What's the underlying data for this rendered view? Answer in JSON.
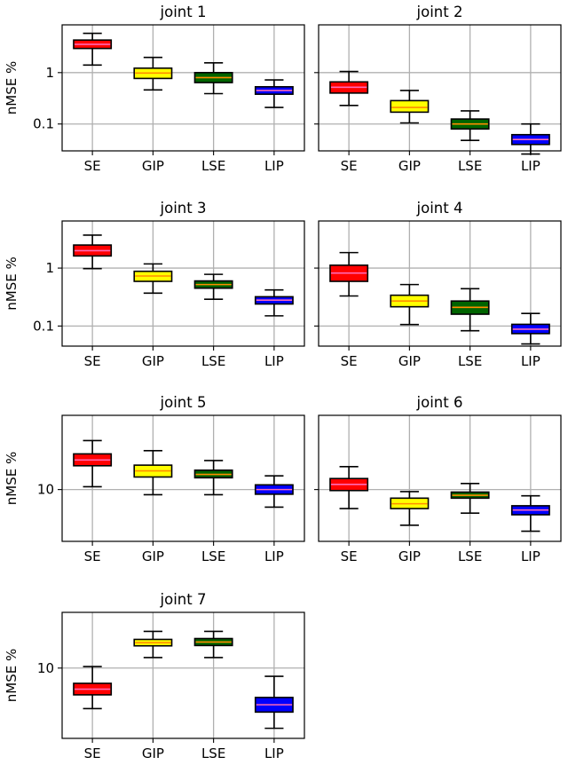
{
  "chart_data": [
    {
      "type": "box",
      "title": "joint 1",
      "ylabel": "nMSE %",
      "yscale": "log",
      "ylim": [
        0.03,
        8.5
      ],
      "yticks": [
        0.1,
        1
      ],
      "yticklabels": [
        "0.1",
        "1"
      ],
      "categories": [
        "SE",
        "GIP",
        "LSE",
        "LIP"
      ],
      "boxes": [
        {
          "whislo": 1.4,
          "q1": 2.95,
          "med": 3.55,
          "q3": 4.3,
          "whishi": 5.8
        },
        {
          "whislo": 0.46,
          "q1": 0.77,
          "med": 0.98,
          "q3": 1.22,
          "whishi": 1.98
        },
        {
          "whislo": 0.39,
          "q1": 0.64,
          "med": 0.8,
          "q3": 1.0,
          "whishi": 1.55
        },
        {
          "whislo": 0.21,
          "q1": 0.38,
          "med": 0.45,
          "q3": 0.53,
          "whishi": 0.72
        }
      ],
      "grid": true
    },
    {
      "type": "box",
      "title": "joint 2",
      "ylabel": "",
      "yscale": "log",
      "ylim": [
        0.03,
        8.5
      ],
      "yticks": [
        0.1,
        1
      ],
      "yticklabels": [
        "",
        ""
      ],
      "categories": [
        "SE",
        "GIP",
        "LSE",
        "LIP"
      ],
      "boxes": [
        {
          "whislo": 0.23,
          "q1": 0.4,
          "med": 0.52,
          "q3": 0.66,
          "whishi": 1.05
        },
        {
          "whislo": 0.105,
          "q1": 0.17,
          "med": 0.21,
          "q3": 0.285,
          "whishi": 0.45
        },
        {
          "whislo": 0.048,
          "q1": 0.08,
          "med": 0.1,
          "q3": 0.125,
          "whishi": 0.18
        },
        {
          "whislo": 0.026,
          "q1": 0.04,
          "med": 0.05,
          "q3": 0.062,
          "whishi": 0.1
        }
      ],
      "grid": true
    },
    {
      "type": "box",
      "title": "joint 3",
      "ylabel": "nMSE %",
      "yscale": "log",
      "ylim": [
        0.045,
        6.5
      ],
      "yticks": [
        0.1,
        1
      ],
      "yticklabels": [
        "0.1",
        "1"
      ],
      "categories": [
        "SE",
        "GIP",
        "LSE",
        "LIP"
      ],
      "boxes": [
        {
          "whislo": 0.98,
          "q1": 1.62,
          "med": 2.0,
          "q3": 2.5,
          "whishi": 3.7
        },
        {
          "whislo": 0.37,
          "q1": 0.59,
          "med": 0.73,
          "q3": 0.88,
          "whishi": 1.18
        },
        {
          "whislo": 0.29,
          "q1": 0.45,
          "med": 0.52,
          "q3": 0.6,
          "whishi": 0.78
        },
        {
          "whislo": 0.15,
          "q1": 0.24,
          "med": 0.28,
          "q3": 0.32,
          "whishi": 0.42
        }
      ],
      "grid": true
    },
    {
      "type": "box",
      "title": "joint 4",
      "ylabel": "",
      "yscale": "log",
      "ylim": [
        0.045,
        6.5
      ],
      "yticks": [
        0.1,
        1
      ],
      "yticklabels": [
        "",
        ""
      ],
      "categories": [
        "SE",
        "GIP",
        "LSE",
        "LIP"
      ],
      "boxes": [
        {
          "whislo": 0.33,
          "q1": 0.59,
          "med": 0.82,
          "q3": 1.12,
          "whishi": 1.85
        },
        {
          "whislo": 0.106,
          "q1": 0.215,
          "med": 0.27,
          "q3": 0.34,
          "whishi": 0.52
        },
        {
          "whislo": 0.083,
          "q1": 0.16,
          "med": 0.21,
          "q3": 0.27,
          "whishi": 0.44
        },
        {
          "whislo": 0.049,
          "q1": 0.074,
          "med": 0.088,
          "q3": 0.107,
          "whishi": 0.165
        }
      ],
      "grid": true
    },
    {
      "type": "box",
      "title": "joint 5",
      "ylabel": "nMSE %",
      "yscale": "log",
      "ylim": [
        3.5,
        45
      ],
      "yticks": [
        10
      ],
      "yticklabels": [
        "10"
      ],
      "categories": [
        "SE",
        "GIP",
        "LSE",
        "LIP"
      ],
      "boxes": [
        {
          "whislo": 10.6,
          "q1": 16.2,
          "med": 18.2,
          "q3": 20.6,
          "whishi": 27.0
        },
        {
          "whislo": 9.0,
          "q1": 12.9,
          "med": 14.6,
          "q3": 16.4,
          "whishi": 22.0
        },
        {
          "whislo": 9.0,
          "q1": 12.7,
          "med": 13.6,
          "q3": 14.8,
          "whishi": 18.0
        },
        {
          "whislo": 7.0,
          "q1": 9.1,
          "med": 10.0,
          "q3": 11.0,
          "whishi": 13.2
        }
      ],
      "grid": true
    },
    {
      "type": "box",
      "title": "joint 6",
      "ylabel": "",
      "yscale": "log",
      "ylim": [
        3.5,
        45
      ],
      "yticks": [
        10
      ],
      "yticklabels": [
        ""
      ],
      "categories": [
        "SE",
        "GIP",
        "LSE",
        "LIP"
      ],
      "boxes": [
        {
          "whislo": 6.8,
          "q1": 9.8,
          "med": 11.1,
          "q3": 12.5,
          "whishi": 15.9
        },
        {
          "whislo": 4.85,
          "q1": 6.8,
          "med": 7.5,
          "q3": 8.4,
          "whishi": 9.6
        },
        {
          "whislo": 6.2,
          "q1": 8.4,
          "med": 8.9,
          "q3": 9.5,
          "whishi": 11.3
        },
        {
          "whislo": 4.3,
          "q1": 6.0,
          "med": 6.6,
          "q3": 7.2,
          "whishi": 8.8
        }
      ],
      "grid": true
    },
    {
      "type": "box",
      "title": "joint 7",
      "ylabel": "nMSE %",
      "yscale": "log",
      "ylim": [
        2.5,
        30
      ],
      "yticks": [
        10
      ],
      "yticklabels": [
        "10"
      ],
      "categories": [
        "SE",
        "GIP",
        "LSE",
        "LIP"
      ],
      "boxes": [
        {
          "whislo": 4.5,
          "q1": 5.9,
          "med": 6.6,
          "q3": 7.4,
          "whishi": 10.3
        },
        {
          "whislo": 12.3,
          "q1": 15.5,
          "med": 16.5,
          "q3": 17.6,
          "whishi": 20.6
        },
        {
          "whislo": 12.3,
          "q1": 15.6,
          "med": 16.7,
          "q3": 17.9,
          "whishi": 20.6
        },
        {
          "whislo": 3.05,
          "q1": 4.2,
          "med": 4.85,
          "q3": 5.6,
          "whishi": 8.5
        }
      ],
      "grid": true
    }
  ],
  "colors": {
    "boxes": [
      "#ff0000",
      "#ffff00",
      "#006400",
      "#0000ff"
    ],
    "medians": [
      "#ff69b4",
      "#ff8c00",
      "#ff8c00",
      "#ff69b4"
    ],
    "grid": "#b0b0b0",
    "axis": "#000000"
  }
}
